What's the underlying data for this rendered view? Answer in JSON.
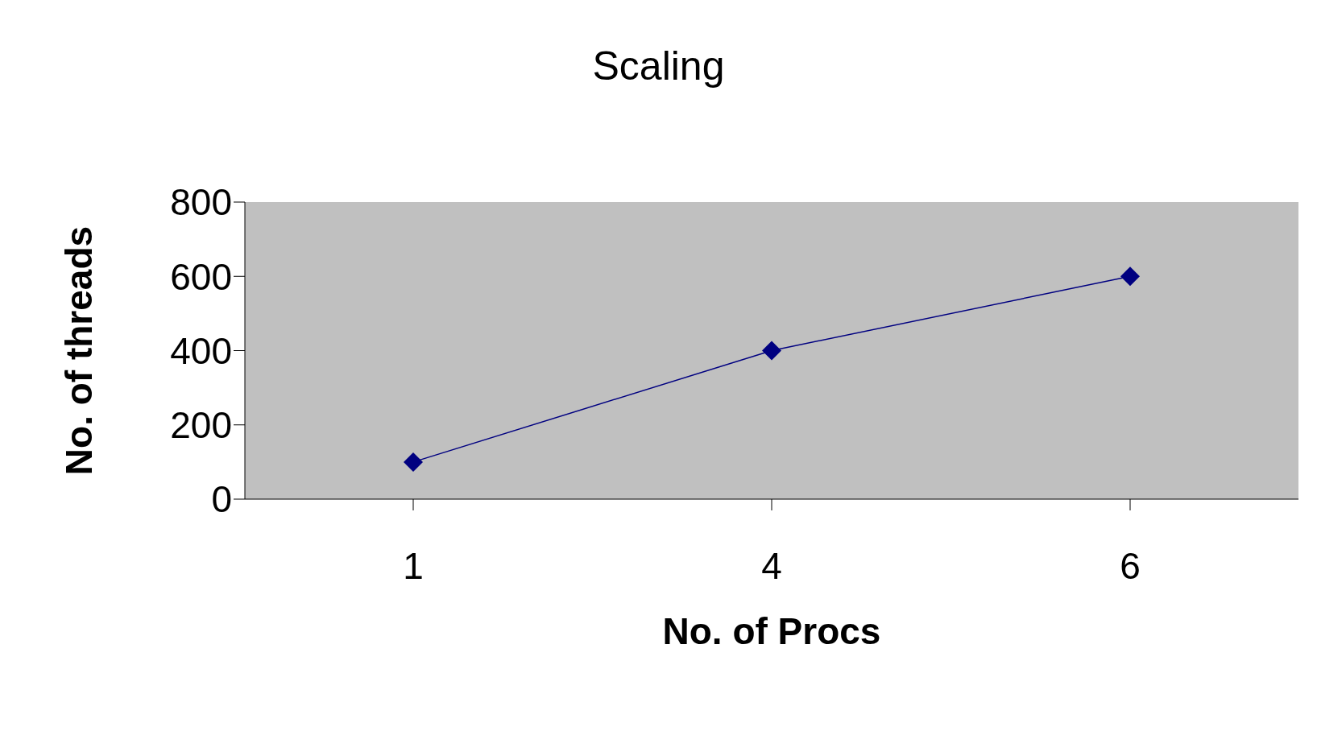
{
  "chart_data": {
    "type": "line",
    "title": "Scaling",
    "xlabel": "No. of Procs",
    "ylabel": "No. of threads",
    "categories": [
      "1",
      "4",
      "6"
    ],
    "series": [
      {
        "color": "#000080",
        "values": [
          100,
          400,
          600
        ]
      }
    ],
    "ylim": [
      0,
      800
    ],
    "yticks": [
      0,
      200,
      400,
      600,
      800
    ],
    "grid": false,
    "legend": false,
    "marker": "diamond",
    "line_style": "solid"
  }
}
